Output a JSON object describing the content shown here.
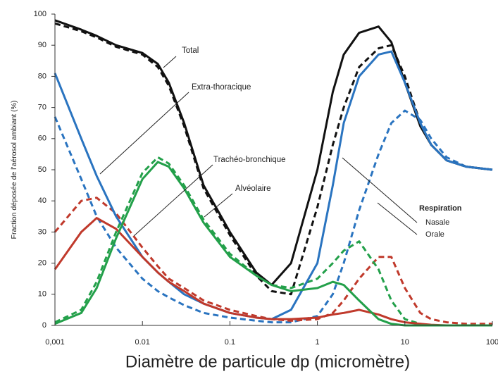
{
  "chart_data": {
    "type": "line",
    "y_label": "Fraction déposée de l'aérosol ambiant (%)",
    "x_label": "Diamètre de particule dp (micromètre)",
    "log_x": true,
    "xlim": [
      0.001,
      100
    ],
    "ylim": [
      0,
      100
    ],
    "xticks": [
      {
        "value": 0.001,
        "label": "0,001"
      },
      {
        "value": 0.01,
        "label": "0.01"
      },
      {
        "value": 0.1,
        "label": "0.1"
      },
      1,
      10,
      100
    ],
    "yticks": [
      0,
      10,
      20,
      30,
      40,
      50,
      60,
      70,
      80,
      90,
      100
    ],
    "legend": {
      "title": "Respiration",
      "entries": [
        "Nasale",
        "Orale"
      ],
      "dashes": [
        "solid",
        "dashed"
      ]
    },
    "x": [
      0.001,
      0.002,
      0.003,
      0.005,
      0.01,
      0.015,
      0.02,
      0.03,
      0.05,
      0.1,
      0.2,
      0.3,
      0.5,
      1,
      1.5,
      2,
      3,
      5,
      7,
      10,
      15,
      20,
      30,
      50,
      100
    ],
    "series": [
      {
        "name": "Total",
        "color": "#111111",
        "nasale": [
          98,
          95,
          93,
          90,
          87.5,
          84,
          78,
          65,
          45,
          30,
          17,
          13,
          20,
          50,
          75,
          87,
          94,
          96,
          91,
          78,
          64,
          58,
          53,
          51,
          50
        ],
        "orale": [
          97,
          94.5,
          92.5,
          89.5,
          87,
          83,
          77,
          64,
          44,
          29,
          16,
          11,
          10,
          38,
          58,
          70,
          83,
          89,
          90,
          80,
          65,
          58,
          53,
          51,
          50
        ]
      },
      {
        "name": "Extra-thoracique",
        "color": "#2a74c0",
        "nasale": [
          81,
          60,
          48,
          35,
          22,
          17,
          14,
          10,
          7,
          4,
          2.5,
          2,
          5,
          20,
          45,
          65,
          80,
          87,
          88,
          78,
          65,
          58,
          53,
          51,
          50
        ],
        "orale": [
          67,
          47,
          35,
          25,
          15,
          11,
          9,
          6.5,
          4,
          2.5,
          1.5,
          1,
          1,
          3,
          10,
          20,
          37,
          55,
          65,
          69,
          66,
          60,
          54,
          51,
          50
        ]
      },
      {
        "name": "Trachéo-bronchique",
        "color": "#c0392b",
        "nasale": [
          18,
          30,
          34.5,
          31,
          22,
          17,
          14,
          11,
          7,
          4,
          2.5,
          2,
          2,
          2.5,
          3.5,
          4,
          5,
          3.5,
          2,
          1,
          0.5,
          0.2,
          0,
          0,
          0
        ],
        "orale": [
          30,
          40,
          41,
          36,
          25,
          19,
          15,
          12,
          8,
          5,
          3,
          2,
          1.5,
          2,
          4,
          8,
          15,
          22,
          22,
          12,
          4,
          2,
          1,
          0.5,
          0.5
        ]
      },
      {
        "name": "Alvéolaire",
        "color": "#23a04a",
        "nasale": [
          0.5,
          4,
          12,
          28,
          47,
          52.5,
          51,
          44,
          33,
          22,
          16,
          13,
          11,
          12,
          14,
          13,
          8,
          2,
          0.5,
          0,
          0,
          0,
          0,
          0,
          0
        ],
        "orale": [
          1,
          5,
          14,
          30,
          49,
          54,
          52,
          45,
          34,
          23,
          16,
          13,
          12,
          15,
          20,
          24,
          27,
          18,
          8,
          2,
          0.5,
          0,
          0,
          0,
          0
        ]
      }
    ]
  }
}
